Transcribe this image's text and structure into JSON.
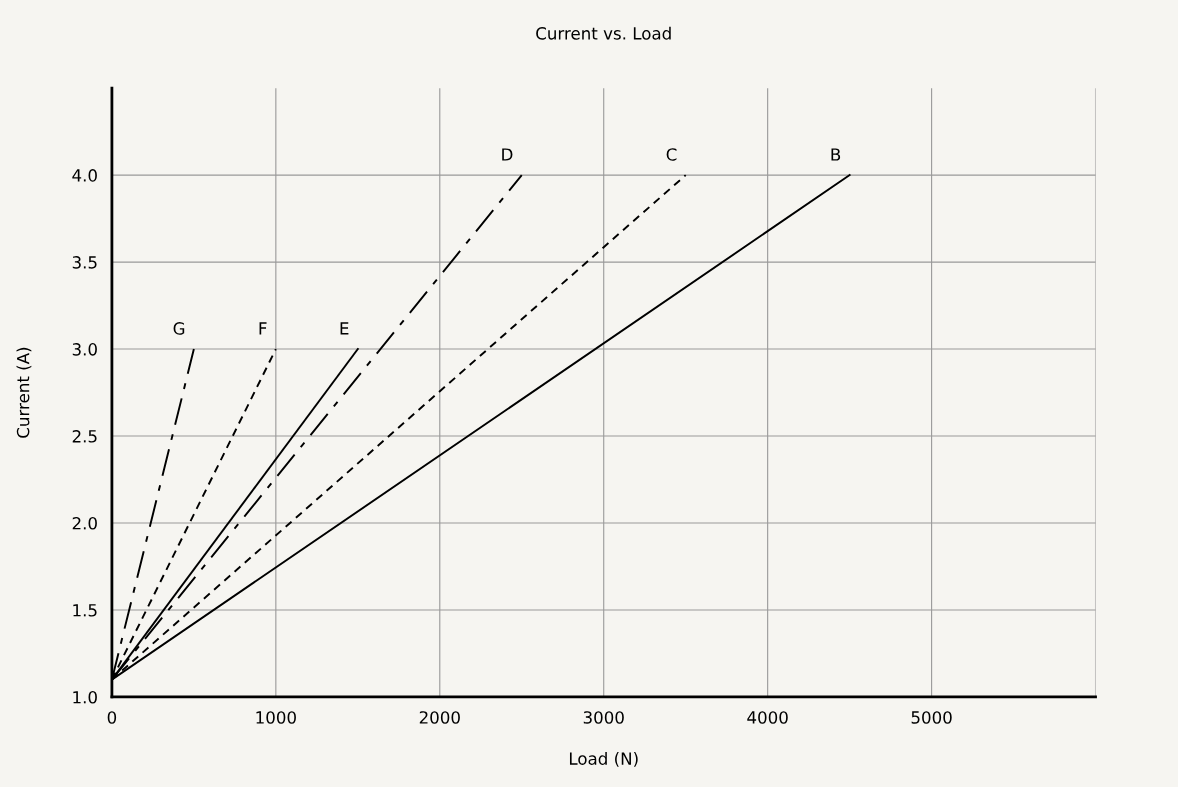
{
  "chart_data": {
    "type": "line",
    "title": "Current vs. Load",
    "xlabel": "Load (N)",
    "ylabel": "Current (A)",
    "xlim": [
      0,
      6000
    ],
    "xticks": [
      0,
      1000,
      2000,
      3000,
      4000,
      5000,
      {
        "value": 6000,
        "label": null
      }
    ],
    "ylim": [
      1.0,
      4.5
    ],
    "yticks": [
      {
        "value": 1.0,
        "label": "1.0"
      },
      1.5,
      {
        "value": 2.0,
        "label": "2.0"
      },
      2.5,
      {
        "value": 3.0,
        "label": "3.0"
      },
      3.5,
      {
        "value": 4.0,
        "label": "4.0"
      }
    ],
    "grid": true,
    "legend": false,
    "series": [
      {
        "name": "B",
        "color": "#000000",
        "line_style": "solid",
        "x": [
          0,
          4500
        ],
        "values": [
          1.1,
          4.0
        ]
      },
      {
        "name": "C",
        "color": "#000000",
        "line_style": "dashed",
        "x": [
          0,
          3500
        ],
        "values": [
          1.1,
          4.0
        ]
      },
      {
        "name": "D",
        "color": "#000000",
        "line_style": "dashdot",
        "x": [
          0,
          2500
        ],
        "values": [
          1.1,
          4.0
        ]
      },
      {
        "name": "E",
        "color": "#000000",
        "line_style": "solid",
        "x": [
          0,
          1500
        ],
        "values": [
          1.1,
          3.0
        ]
      },
      {
        "name": "F",
        "color": "#000000",
        "line_style": "dashed",
        "x": [
          0,
          1000
        ],
        "values": [
          1.1,
          3.0
        ]
      },
      {
        "name": "G",
        "color": "#000000",
        "line_style": "dashdot",
        "x": [
          0,
          500
        ],
        "values": [
          1.1,
          3.0
        ]
      }
    ]
  }
}
